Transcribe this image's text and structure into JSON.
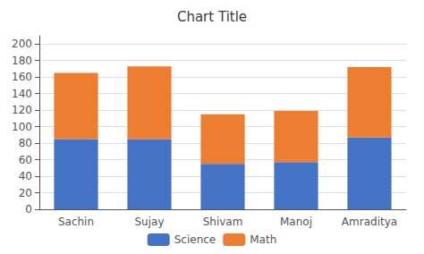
{
  "chart_data": {
    "type": "bar",
    "title": "Chart Title",
    "categories": [
      "Sachin",
      "Sujay",
      "Shivam",
      "Manoj",
      "Amraditya"
    ],
    "series": [
      {
        "name": "Science",
        "color": "#4472C4",
        "values": [
          85,
          85,
          55,
          57,
          87
        ]
      },
      {
        "name": "Math",
        "color": "#ED7D31",
        "values": [
          80,
          88,
          60,
          62,
          85
        ]
      }
    ],
    "stacked": true,
    "ylim": [
      0,
      210
    ],
    "yticks": [
      0,
      20,
      40,
      60,
      80,
      100,
      120,
      140,
      160,
      180,
      200
    ],
    "grid": true,
    "legend": "bottom"
  }
}
